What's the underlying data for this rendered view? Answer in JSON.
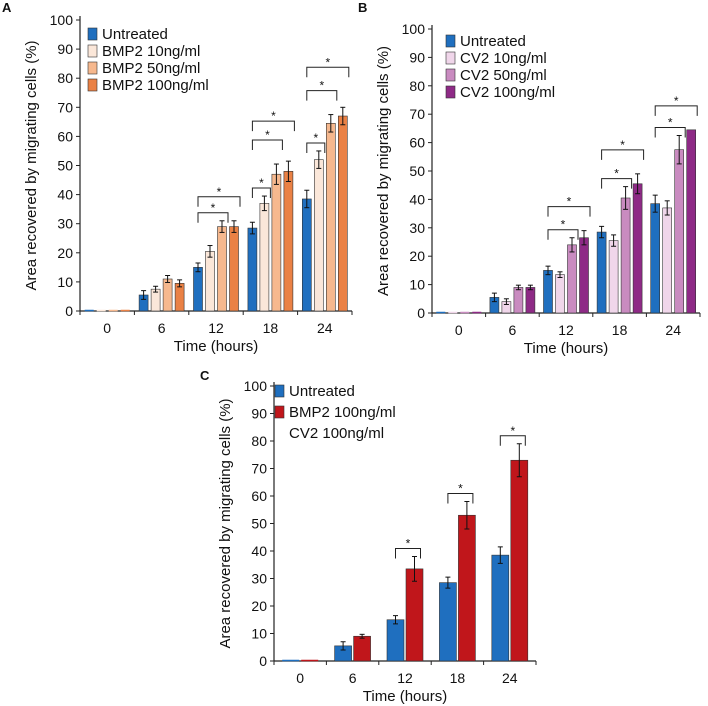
{
  "panel_letters": [
    "A",
    "B",
    "C"
  ],
  "colors": {
    "untreated": "#1f6fbf",
    "bmp2_10": "#fbe7d9",
    "bmp2_50": "#f6b88e",
    "bmp2_100": "#ea8145",
    "cv2_10": "#f0d6ea",
    "cv2_50": "#c98bc0",
    "cv2_100": "#8e2a86",
    "combo": "#c0161b",
    "axis": "#222222"
  },
  "chart_data": [
    {
      "panel": "A",
      "type": "bar",
      "categories": [
        "0",
        "6",
        "12",
        "18",
        "24"
      ],
      "xlabel": "Time (hours)",
      "ylabel": "Area recovered by migrating cells (%)",
      "ylim": [
        0,
        100
      ],
      "yticks": [
        0,
        10,
        20,
        30,
        40,
        50,
        60,
        70,
        80,
        90,
        100
      ],
      "legend_position": "top-left",
      "series": [
        {
          "name": "Untreated",
          "color_key": "untreated",
          "values": [
            0,
            5.5,
            15,
            28.5,
            38.5
          ],
          "errors": [
            0,
            1.5,
            1.5,
            2,
            3
          ]
        },
        {
          "name": "BMP2 10ng/ml",
          "color_key": "bmp2_10",
          "values": [
            0,
            7.5,
            20.5,
            37,
            52
          ],
          "errors": [
            0,
            1,
            2,
            2.5,
            3
          ]
        },
        {
          "name": "BMP2 50ng/ml",
          "color_key": "bmp2_50",
          "values": [
            0,
            11,
            29,
            47,
            64.5
          ],
          "errors": [
            0,
            1.2,
            2,
            3.5,
            3
          ]
        },
        {
          "name": "BMP2 100ng/ml",
          "color_key": "bmp2_100",
          "values": [
            0,
            9.5,
            29,
            48,
            67
          ],
          "errors": [
            0,
            1.2,
            2,
            3.5,
            3
          ]
        }
      ],
      "significance": [
        {
          "group": 2,
          "from": 0,
          "to": 2,
          "level": 1,
          "label": "*"
        },
        {
          "group": 2,
          "from": 0,
          "to": 3,
          "level": 2,
          "label": "*"
        },
        {
          "group": 3,
          "from": 0,
          "to": 1,
          "level": 1,
          "label": "*"
        },
        {
          "group": 3,
          "from": 0,
          "to": 2,
          "level": 2,
          "label": "*"
        },
        {
          "group": 3,
          "from": 0,
          "to": 3,
          "level": 3,
          "label": "*"
        },
        {
          "group": 4,
          "from": 0,
          "to": 1,
          "level": 1,
          "label": "*"
        },
        {
          "group": 4,
          "from": 0,
          "to": 2,
          "level": 2,
          "label": "*"
        },
        {
          "group": 4,
          "from": 0,
          "to": 3,
          "level": 3,
          "label": "*"
        }
      ]
    },
    {
      "panel": "B",
      "type": "bar",
      "categories": [
        "0",
        "6",
        "12",
        "18",
        "24"
      ],
      "xlabel": "Time (hours)",
      "ylabel": "Area recovered by migrating cells (%)",
      "ylim": [
        0,
        100
      ],
      "yticks": [
        0,
        10,
        20,
        30,
        40,
        50,
        60,
        70,
        80,
        90,
        100
      ],
      "legend_position": "top-left",
      "series": [
        {
          "name": "Untreated",
          "color_key": "untreated",
          "values": [
            0,
            5.5,
            15,
            28.5,
            38.5
          ],
          "errors": [
            0,
            1.5,
            1.5,
            2,
            3
          ]
        },
        {
          "name": "CV2 10ng/ml",
          "color_key": "cv2_10",
          "values": [
            0,
            4,
            13.5,
            25.5,
            37
          ],
          "errors": [
            0,
            1,
            1,
            2,
            2.5
          ]
        },
        {
          "name": "CV2 50ng/ml",
          "color_key": "cv2_50",
          "values": [
            0,
            9,
            24,
            40.5,
            57.5
          ],
          "errors": [
            0,
            0.8,
            2.5,
            4,
            5
          ]
        },
        {
          "name": "CV2 100ng/ml",
          "color_key": "cv2_100",
          "values": [
            0,
            9,
            26.5,
            45.5,
            64.5
          ],
          "errors": [
            0,
            0.8,
            2.5,
            3.5,
            0
          ]
        }
      ],
      "significance": [
        {
          "group": 2,
          "from": 0,
          "to": 2,
          "level": 1,
          "label": "*"
        },
        {
          "group": 2,
          "from": 0,
          "to": 3,
          "level": 2,
          "label": "*"
        },
        {
          "group": 3,
          "from": 0,
          "to": 2,
          "level": 1,
          "label": "*"
        },
        {
          "group": 3,
          "from": 0,
          "to": 3,
          "level": 2,
          "label": "*"
        },
        {
          "group": 4,
          "from": 0,
          "to": 2,
          "level": 1,
          "label": "*"
        },
        {
          "group": 4,
          "from": 0,
          "to": 3,
          "level": 2,
          "label": "*"
        }
      ]
    },
    {
      "panel": "C",
      "type": "bar",
      "categories": [
        "0",
        "6",
        "12",
        "18",
        "24"
      ],
      "xlabel": "Time (hours)",
      "ylabel": "Area recovered by migrating cells (%)",
      "ylim": [
        0,
        100
      ],
      "yticks": [
        0,
        10,
        20,
        30,
        40,
        50,
        60,
        70,
        80,
        90,
        100
      ],
      "legend_position": "top-left",
      "legend_extra_line": "CV2 100ng/ml",
      "series": [
        {
          "name": "Untreated",
          "color_key": "untreated",
          "values": [
            0,
            5.5,
            15,
            28.5,
            38.5
          ],
          "errors": [
            0,
            1.5,
            1.5,
            2,
            3
          ]
        },
        {
          "name": "BMP2 100ng/ml",
          "color_key": "combo",
          "values": [
            0,
            9,
            33.5,
            53,
            73
          ],
          "errors": [
            0,
            0.7,
            4.5,
            5,
            6
          ]
        }
      ],
      "significance": [
        {
          "group": 2,
          "from": 0,
          "to": 1,
          "level": 1,
          "label": "*"
        },
        {
          "group": 3,
          "from": 0,
          "to": 1,
          "level": 1,
          "label": "*"
        },
        {
          "group": 4,
          "from": 0,
          "to": 1,
          "level": 1,
          "label": "*"
        }
      ]
    }
  ]
}
